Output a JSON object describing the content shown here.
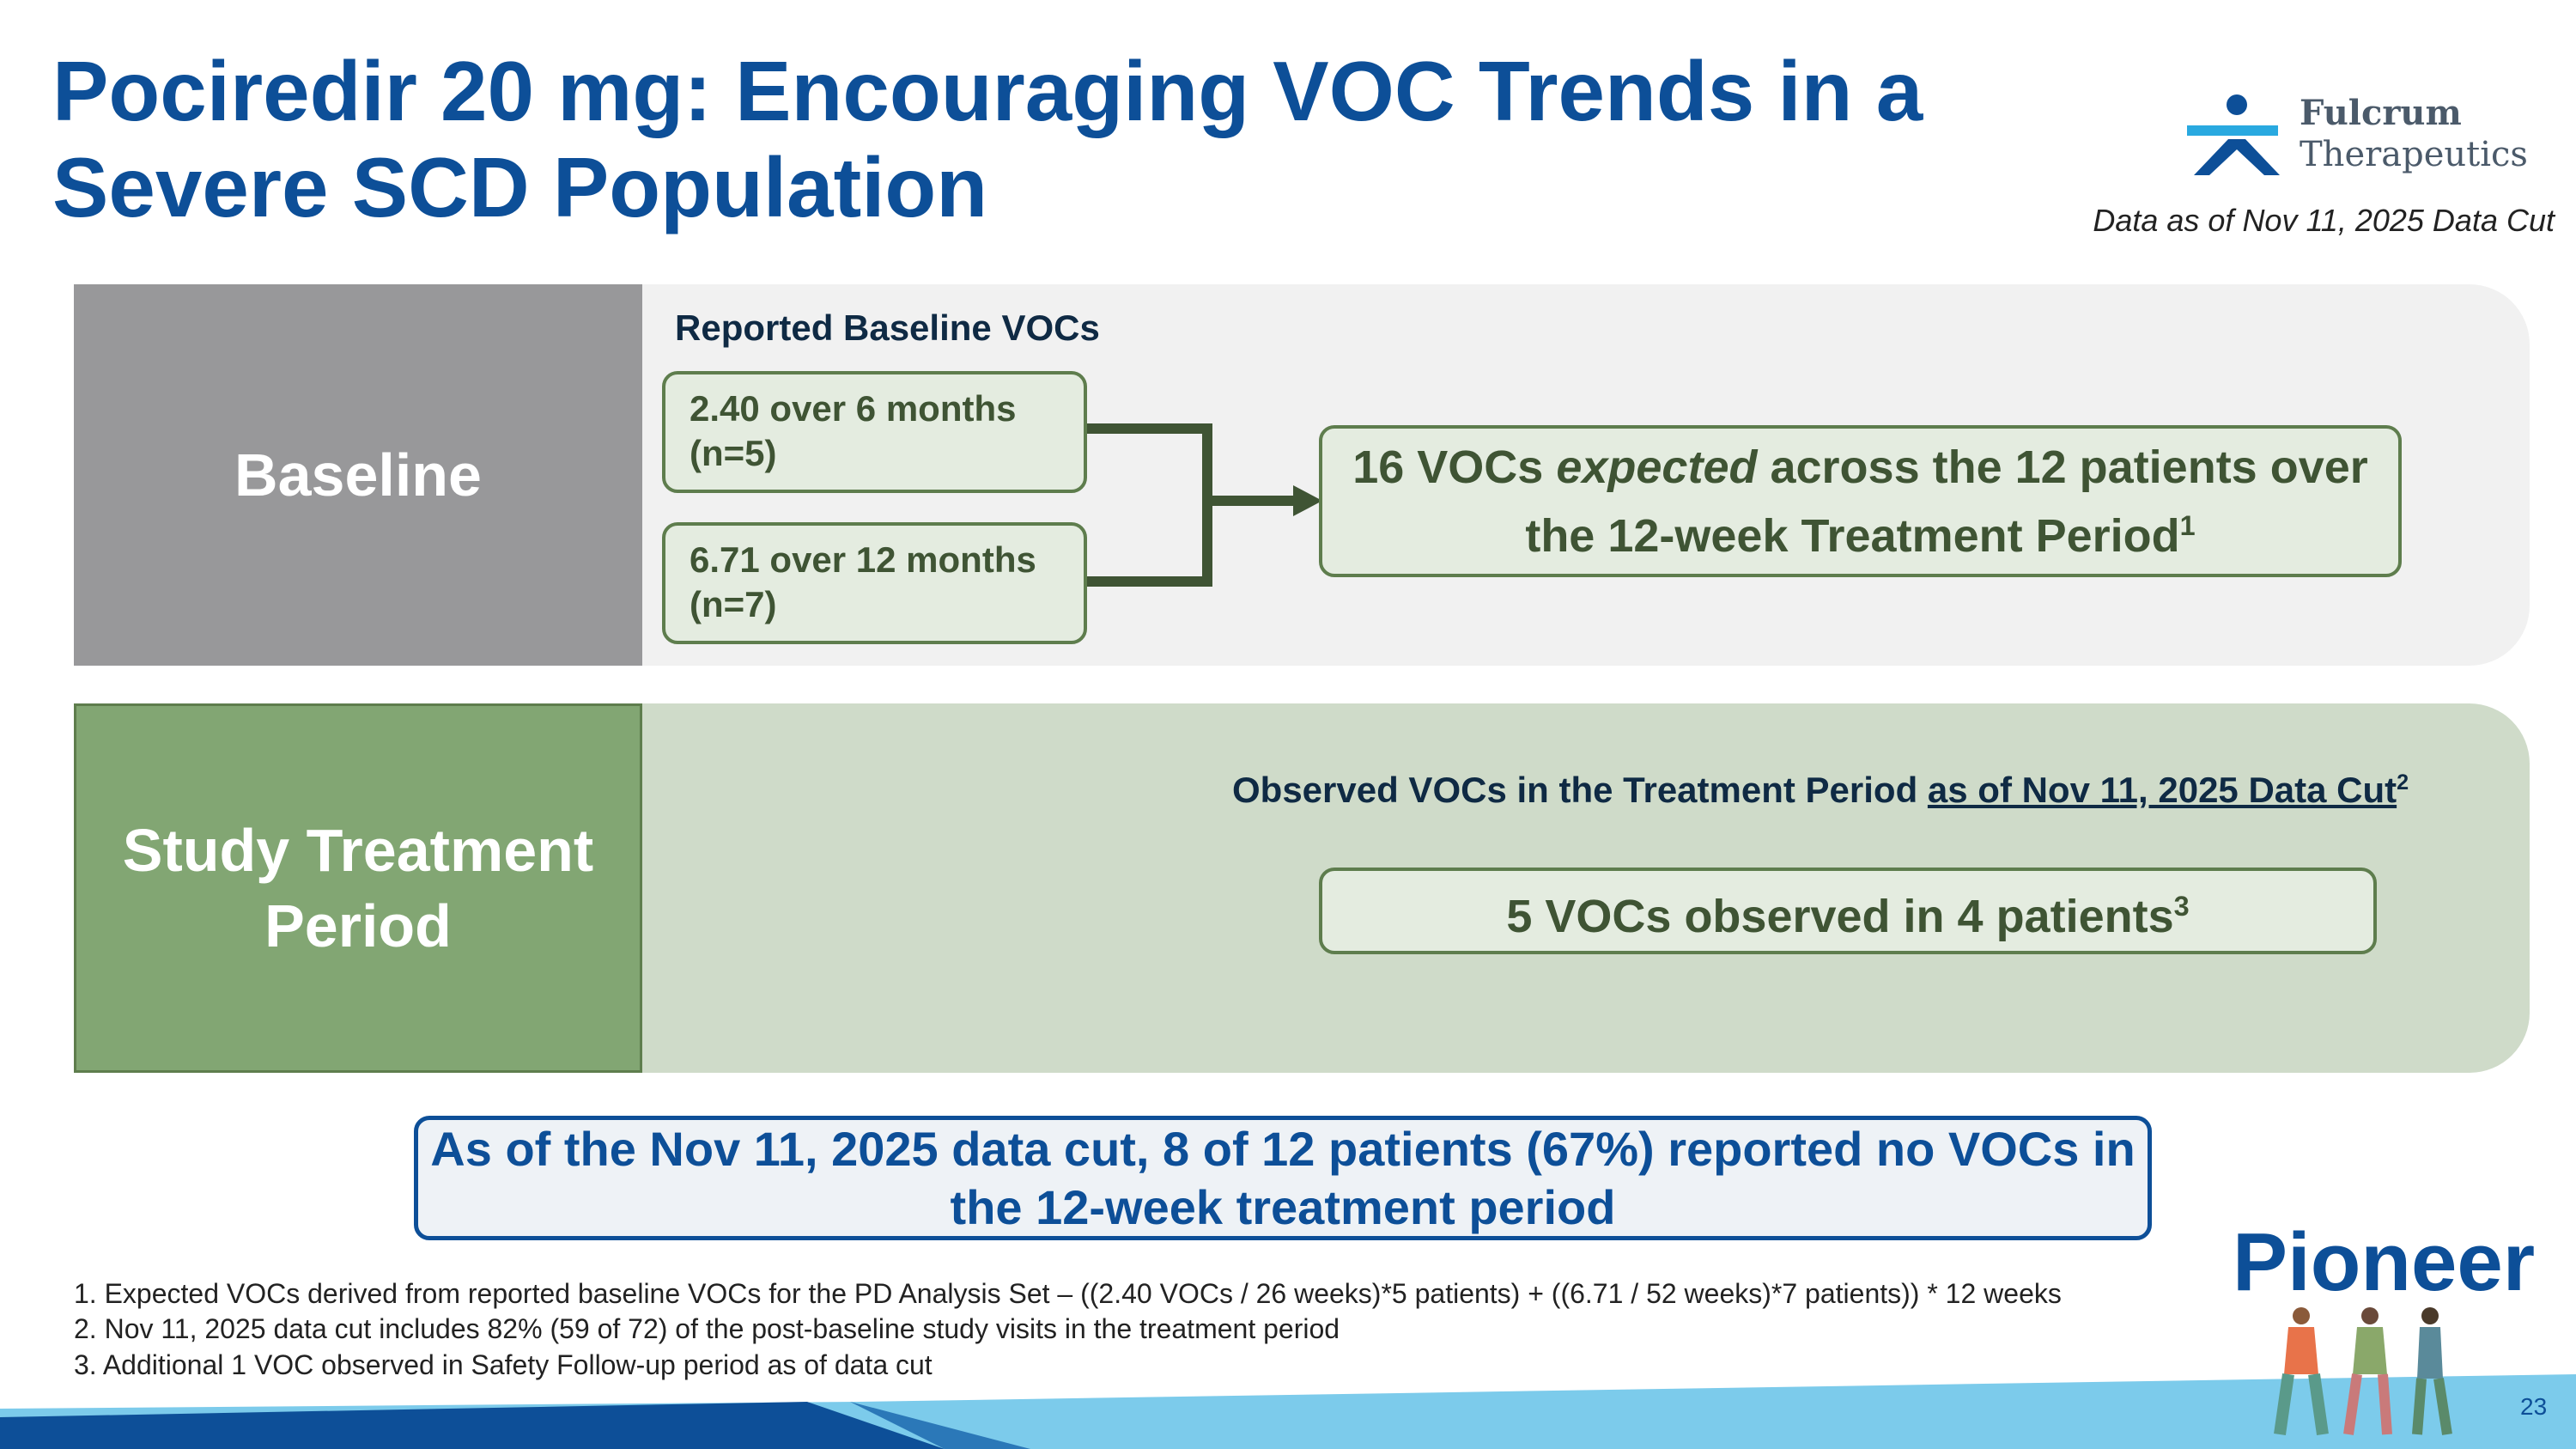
{
  "header": {
    "title": "Pociredir 20 mg: Encouraging VOC Trends in a Severe SCD Population",
    "data_note": "Data as of Nov 11, 2025 Data Cut"
  },
  "logo": {
    "name": "Fulcrum",
    "subtitle": "Therapeutics"
  },
  "baseline": {
    "label": "Baseline",
    "heading": "Reported Baseline VOCs",
    "boxes": [
      {
        "line1": "2.40 over 6 months",
        "line2": "(n=5)"
      },
      {
        "line1": "6.71 over 12 months",
        "line2": "(n=7)"
      }
    ],
    "result": {
      "before": "16 VOCs ",
      "emphasis": "expected",
      "after": " across the 12 patients over the 12-week Treatment Period",
      "footnote": "1"
    }
  },
  "treatment": {
    "label": "Study Treatment Period",
    "heading": "Observed VOCs in the Treatment Period",
    "heading_link": "as of Nov 11, 2025 Data Cut",
    "heading_footnote": "2",
    "result": "5 VOCs observed in 4 patients",
    "result_footnote": "3"
  },
  "callout": "As of the Nov 11, 2025 data cut, 8 of 12 patients (67%) reported no VOCs in the 12-week treatment period",
  "footnotes": [
    "1. Expected VOCs derived from reported baseline VOCs for the PD Analysis Set – ((2.40 VOCs / 26 weeks)*5 patients) +  ((6.71 / 52 weeks)*7 patients)) * 12 weeks",
    "2. Nov 11, 2025 data cut includes 82% (59 of 72) of the post-baseline study visits in the treatment period",
    "3. Additional 1 VOC observed in Safety Follow-up period as of data cut"
  ],
  "brand": "Pioneer",
  "page_number": "23"
}
